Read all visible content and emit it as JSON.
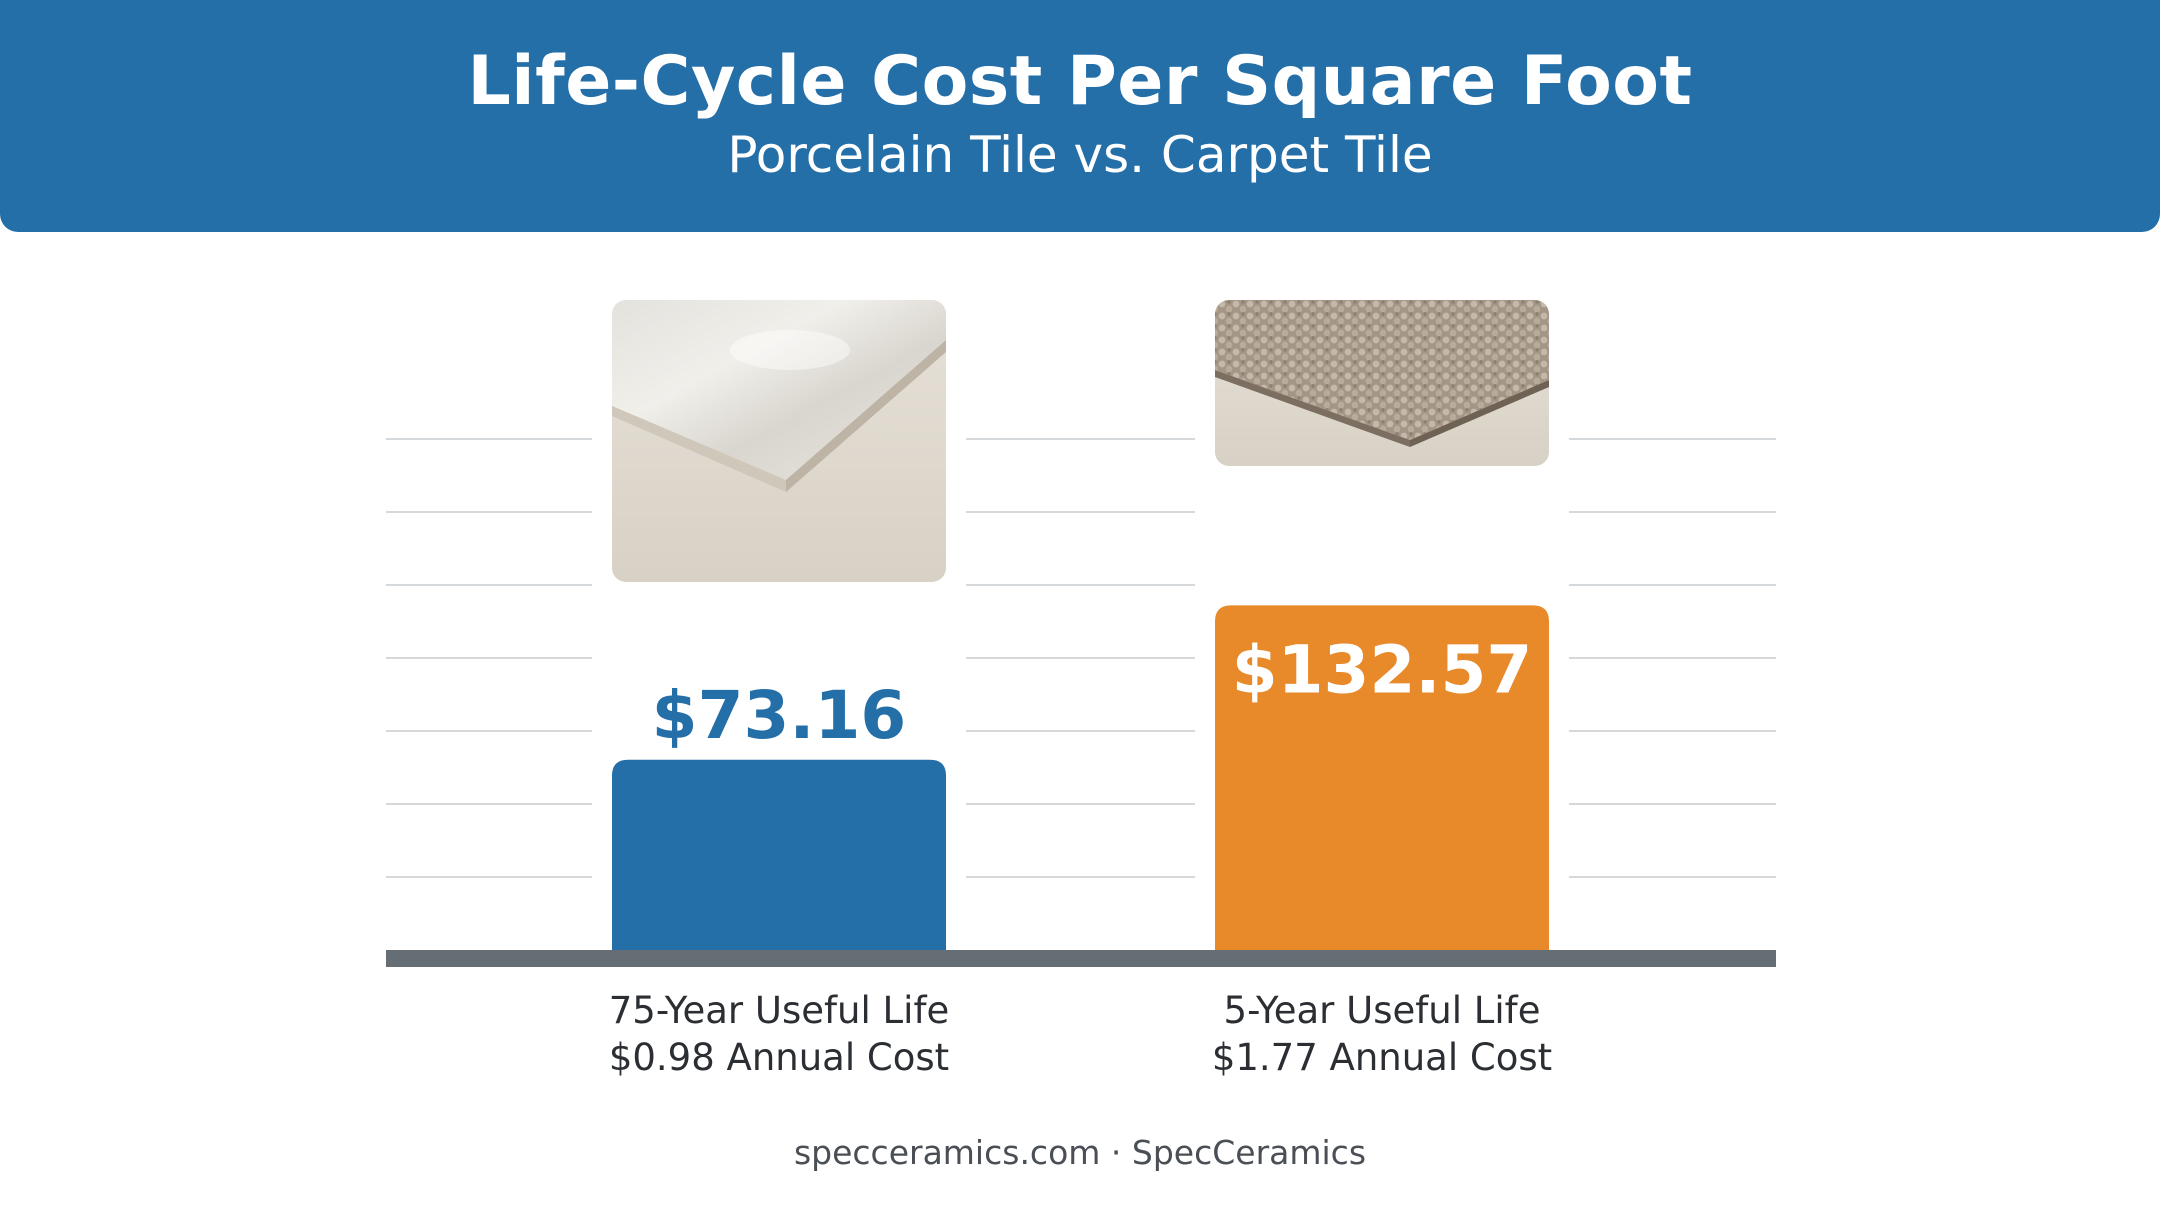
{
  "header": {
    "title": "Life-Cycle Cost Per Square Foot",
    "subtitle": "Porcelain Tile vs. Carpet Tile"
  },
  "chart_data": {
    "type": "bar",
    "title": "Life-Cycle Cost Per Square Foot",
    "subtitle": "Porcelain Tile vs. Carpet Tile",
    "categories": [
      "Porcelain Tile",
      "Carpet Tile"
    ],
    "values": [
      73.16,
      132.57
    ],
    "value_labels": [
      "$73.16",
      "$132.57"
    ],
    "category_labels": [
      [
        "75-Year Useful Life",
        "$0.98 Annual Cost"
      ],
      [
        "5-Year Useful Life",
        "$1.77 Annual Cost"
      ]
    ],
    "images": [
      "porcelain-tile-image",
      "carpet-tile-image"
    ],
    "colors": [
      "#246fa8",
      "#e8892a"
    ],
    "ylim": [
      0,
      180
    ],
    "grid": true,
    "legend": "none"
  },
  "colors": {
    "header_bg": "#246fa8",
    "porcelain": "#246fa8",
    "carpet": "#e8892a",
    "baseline": "#656d75",
    "gridline": "#d6d9dc"
  },
  "footer": {
    "text": "specceramics.com · SpecCeramics"
  }
}
